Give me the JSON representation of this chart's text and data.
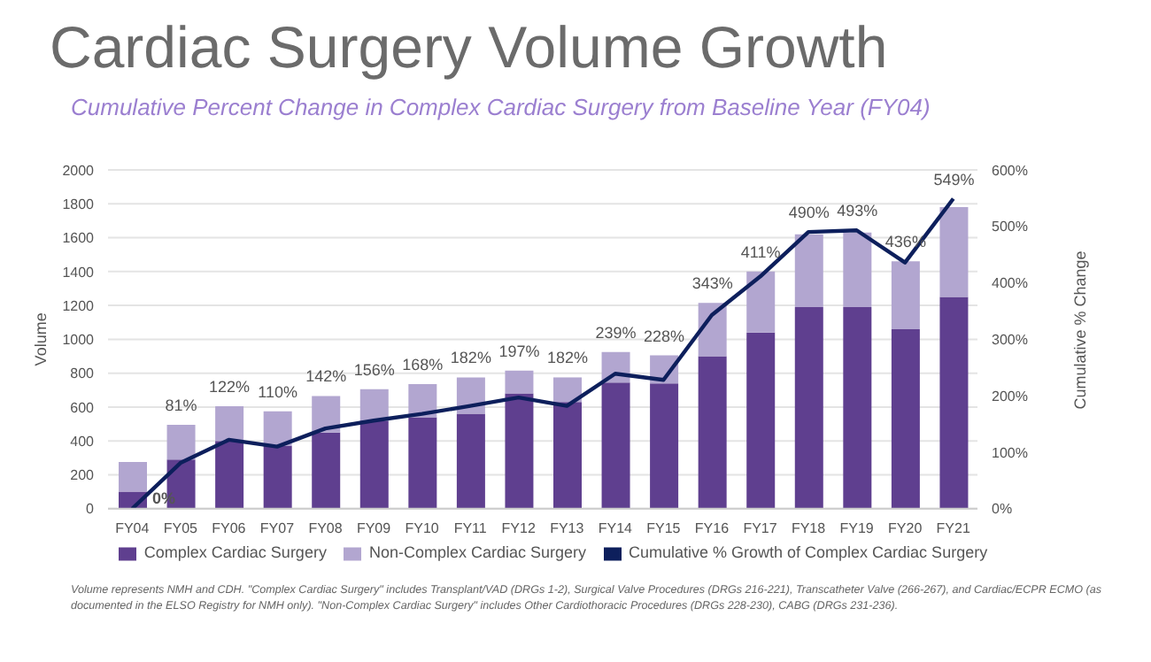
{
  "chart_data": {
    "type": "bar",
    "title": "Cardiac Surgery Volume Growth",
    "subtitle": "Cumulative Percent Change in Complex Cardiac Surgery from Baseline Year (FY04)",
    "ylabel": "Volume",
    "y2label": "Cumulative % Change",
    "categories": [
      "FY04",
      "FY05",
      "FY06",
      "FY07",
      "FY08",
      "FY09",
      "FY10",
      "FY11",
      "FY12",
      "FY13",
      "FY14",
      "FY15",
      "FY16",
      "FY17",
      "FY18",
      "FY19",
      "FY20",
      "FY21"
    ],
    "stacked": true,
    "series": [
      {
        "name": "Complex Cardiac Surgery",
        "color": "#5f3f8f",
        "values": [
          100,
          290,
          400,
          370,
          450,
          520,
          540,
          560,
          680,
          630,
          745,
          740,
          900,
          1040,
          1190,
          1190,
          1060,
          1250
        ]
      },
      {
        "name": "Non-Complex Cardiac Surgery",
        "color": "#b2a6d0",
        "values": [
          175,
          205,
          205,
          205,
          215,
          185,
          195,
          215,
          135,
          145,
          180,
          165,
          315,
          360,
          430,
          440,
          400,
          530
        ]
      },
      {
        "name": "Cumulative % Growth of Complex Cardiac Surgery",
        "type": "line",
        "axis": "y2",
        "color": "#0d1f5c",
        "marker": "none",
        "values": [
          0,
          81,
          122,
          110,
          142,
          156,
          168,
          182,
          197,
          182,
          239,
          228,
          343,
          411,
          490,
          493,
          436,
          549
        ],
        "value_labels": [
          "0%",
          "81%",
          "122%",
          "110%",
          "142%",
          "156%",
          "168%",
          "182%",
          "197%",
          "182%",
          "239%",
          "228%",
          "343%",
          "411%",
          "490%",
          "493%",
          "436%",
          "549%"
        ]
      }
    ],
    "ylim": [
      0,
      2000
    ],
    "yticks": [
      0,
      200,
      400,
      600,
      800,
      1000,
      1200,
      1400,
      1600,
      1800,
      2000
    ],
    "y2lim": [
      0,
      600
    ],
    "y2ticks": [
      {
        "value": 0,
        "label": "0%"
      },
      {
        "value": 100,
        "label": "100%"
      },
      {
        "value": 200,
        "label": "200%"
      },
      {
        "value": 300,
        "label": "300%"
      },
      {
        "value": 400,
        "label": "400%"
      },
      {
        "value": 500,
        "label": "500%"
      },
      {
        "value": 600,
        "label": "600%"
      }
    ],
    "grid": "y",
    "legend": "bottom",
    "annotations": [
      "Volume represents NMH and CDH.  \"Complex Cardiac Surgery\" includes Transplant/VAD (DRGs 1-2), Surgical Valve Procedures (DRGs 216-221), Transcatheter Valve (266-267), and Cardiac/ECPR ECMO (as documented in the ELSO Registry for NMH only).  \"Non-Complex Cardiac Surgery\" includes Other Cardiothoracic Procedures (DRGs 228-230), CABG (DRGs 231-236)."
    ]
  }
}
